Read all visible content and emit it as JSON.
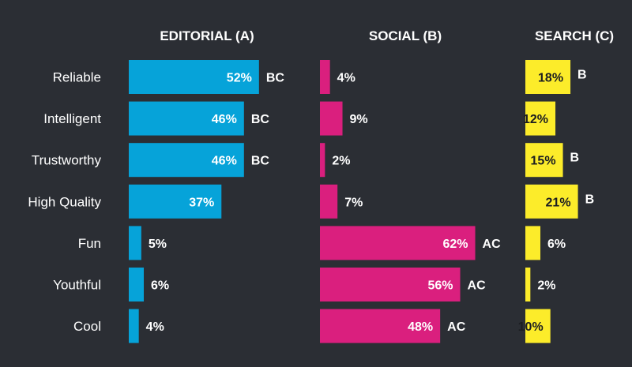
{
  "chart_data": {
    "type": "bar",
    "categories": [
      "Reliable",
      "Intelligent",
      "Trustworthy",
      "High Quality",
      "Fun",
      "Youthful",
      "Cool"
    ],
    "series": [
      {
        "name": "EDITORIAL (A)",
        "color": "#06a3d9",
        "values": [
          52,
          46,
          46,
          37,
          5,
          6,
          4
        ],
        "labels": [
          "52%",
          "46%",
          "46%",
          "37%",
          "5%",
          "6%",
          "4%"
        ],
        "significance": [
          "BC",
          "BC",
          "BC",
          "",
          "",
          "",
          ""
        ]
      },
      {
        "name": "SOCIAL (B)",
        "color": "#da1f7e",
        "values": [
          4,
          9,
          2,
          7,
          62,
          56,
          48
        ],
        "labels": [
          "4%",
          "9%",
          "2%",
          "7%",
          "62%",
          "56%",
          "48%"
        ],
        "significance": [
          "",
          "",
          "",
          "",
          "AC",
          "AC",
          "AC"
        ]
      },
      {
        "name": "SEARCH (C)",
        "color": "#fcec2a",
        "values": [
          18,
          12,
          15,
          21,
          6,
          2,
          10
        ],
        "labels": [
          "18%",
          "12%",
          "15%",
          "21%",
          "6%",
          "2%",
          "10%"
        ],
        "significance": [
          "B",
          "",
          "B",
          "B",
          "",
          "",
          ""
        ]
      }
    ],
    "value_label_colors": {
      "inside_light": "#ffffff",
      "inside_dark": "#1b1d21",
      "outside": "#ffffff"
    },
    "legend": "column headers",
    "grid": false
  }
}
